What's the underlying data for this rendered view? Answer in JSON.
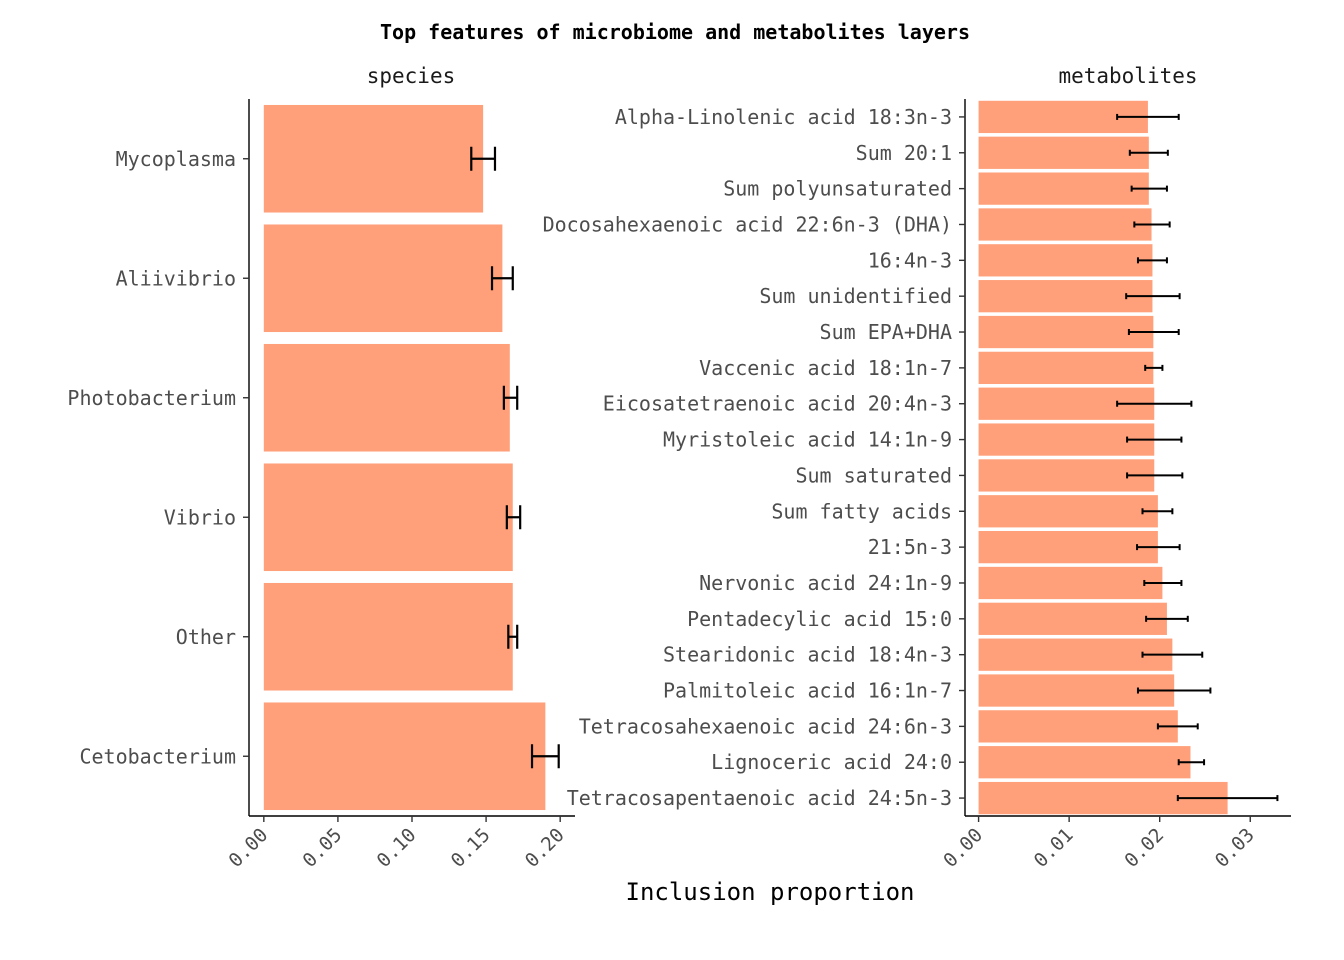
{
  "title": "Top features of microbiome and metabolites layers",
  "xlabel": "Inclusion proportion",
  "bar_color": "#FFA07A",
  "chart_data": [
    {
      "type": "bar",
      "orientation": "horizontal",
      "panel_title": "species",
      "xlim": [
        -0.01,
        0.21
      ],
      "xticks": [
        0.0,
        0.05,
        0.1,
        0.15,
        0.2
      ],
      "xtick_labels": [
        "0.00",
        "0.05",
        "0.10",
        "0.15",
        "0.20"
      ],
      "categories": [
        "Mycoplasma",
        "Aliivibrio",
        "Photobacterium",
        "Vibrio",
        "Other",
        "Cetobacterium"
      ],
      "values": [
        0.148,
        0.161,
        0.166,
        0.168,
        0.168,
        0.19
      ],
      "err_low": [
        0.14,
        0.154,
        0.162,
        0.164,
        0.165,
        0.181
      ],
      "err_high": [
        0.156,
        0.168,
        0.171,
        0.173,
        0.171,
        0.199
      ]
    },
    {
      "type": "bar",
      "orientation": "horizontal",
      "panel_title": "metabolites",
      "xlim": [
        -0.0015,
        0.0345
      ],
      "xticks": [
        0.0,
        0.01,
        0.02,
        0.03
      ],
      "xtick_labels": [
        "0.00",
        "0.01",
        "0.02",
        "0.03"
      ],
      "categories": [
        "Alpha-Linolenic acid 18:3n-3",
        "Sum 20:1",
        "Sum polyunsaturated",
        "Docosahexaenoic acid 22:6n-3 (DHA)",
        "16:4n-3",
        "Sum unidentified",
        "Sum EPA+DHA",
        "Vaccenic acid 18:1n-7",
        "Eicosatetraenoic acid 20:4n-3",
        "Myristoleic acid 14:1n-9",
        "Sum saturated",
        "Sum fatty acids",
        "21:5n-3",
        "Nervonic acid 24:1n-9",
        "Pentadecylic acid 15:0",
        "Stearidonic acid 18:4n-3",
        "Palmitoleic acid 16:1n-7",
        "Tetracosahexaenoic acid 24:6n-3",
        "Lignoceric acid 24:0",
        "Tetracosapentaenoic acid 24:5n-3"
      ],
      "values": [
        0.0187,
        0.0188,
        0.0188,
        0.0191,
        0.0192,
        0.0192,
        0.0193,
        0.0193,
        0.0194,
        0.0194,
        0.0194,
        0.0198,
        0.0198,
        0.0203,
        0.0208,
        0.0214,
        0.0216,
        0.022,
        0.0234,
        0.0275
      ],
      "err_low": [
        0.0153,
        0.0167,
        0.0169,
        0.0172,
        0.0176,
        0.0163,
        0.0166,
        0.0184,
        0.0153,
        0.0164,
        0.0164,
        0.0181,
        0.0175,
        0.0183,
        0.0185,
        0.0181,
        0.0176,
        0.0198,
        0.0221,
        0.022
      ],
      "err_high": [
        0.0221,
        0.0209,
        0.0208,
        0.0211,
        0.0208,
        0.0222,
        0.0221,
        0.0203,
        0.0235,
        0.0224,
        0.0225,
        0.0214,
        0.0222,
        0.0224,
        0.0231,
        0.0247,
        0.0256,
        0.0242,
        0.0249,
        0.033
      ]
    }
  ]
}
